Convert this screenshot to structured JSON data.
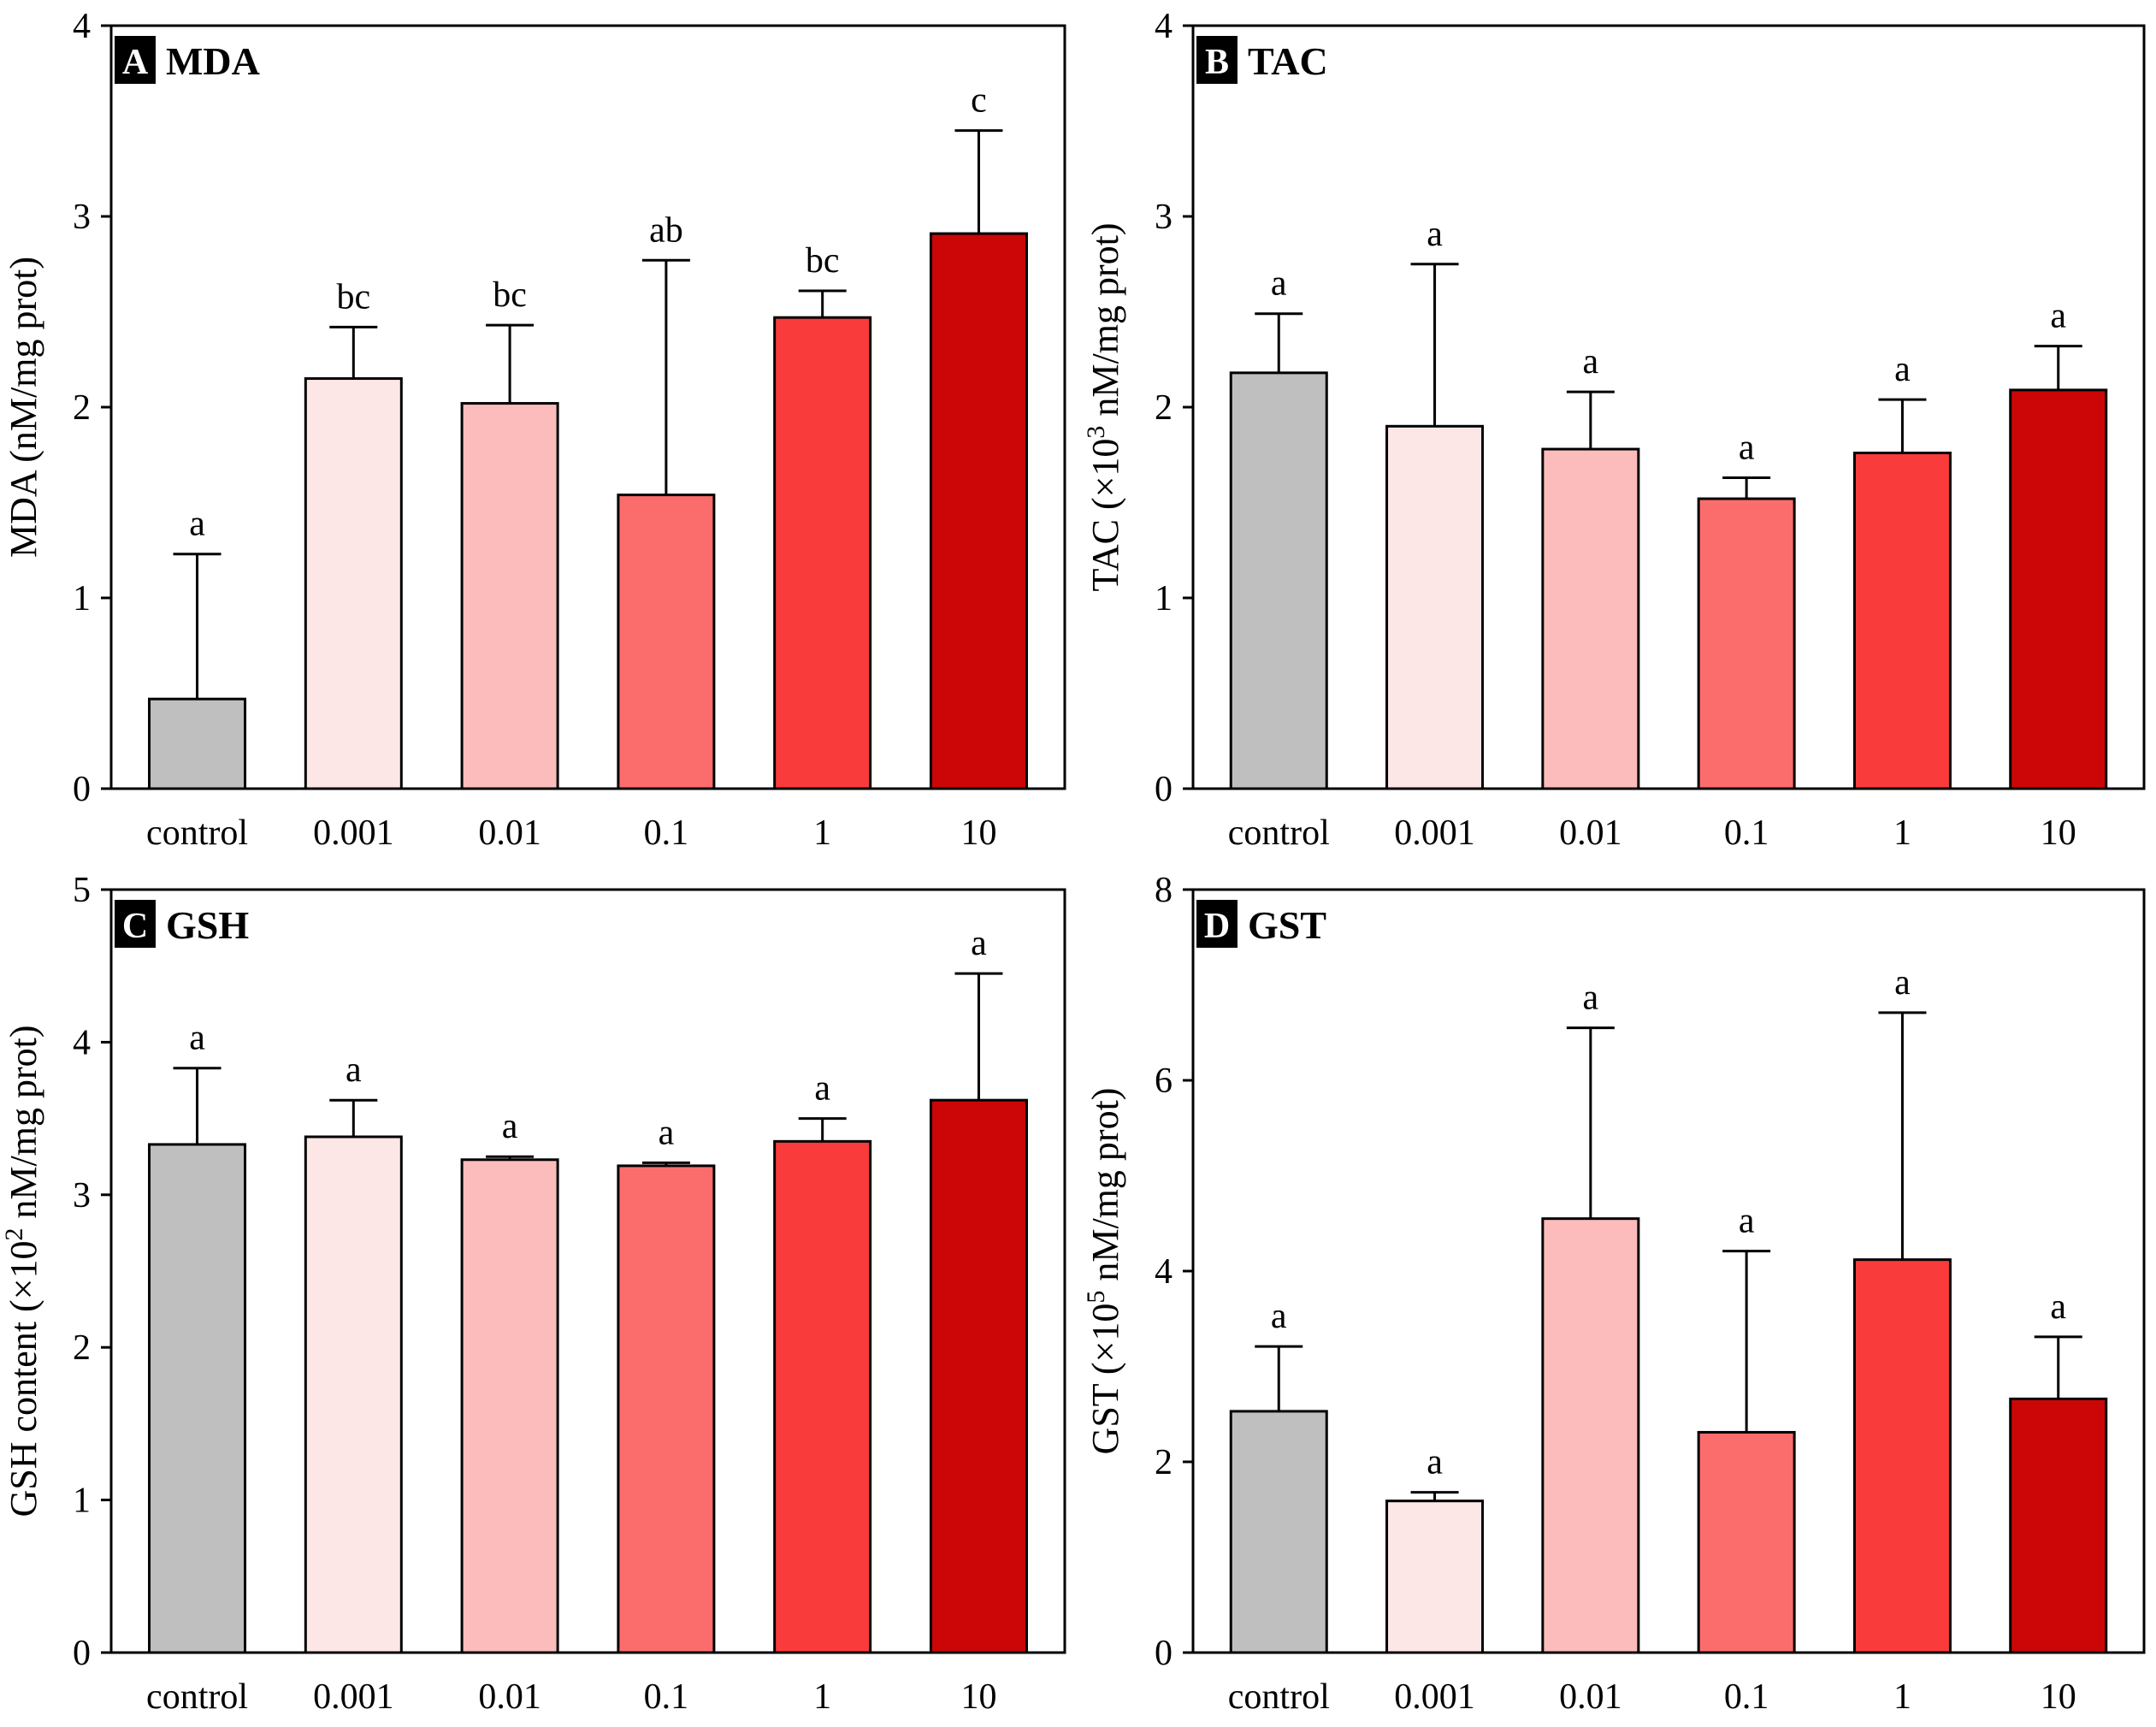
{
  "colors": [
    "#bfbfbf",
    "#fde6e6",
    "#fcbcbc",
    "#fb6d6d",
    "#fa3b3b",
    "#cc0606"
  ],
  "chart_data": [
    {
      "type": "bar",
      "panel_letter": "A",
      "title": "MDA",
      "ylabel": "MDA (nM/mg prot)",
      "ylabel_sup": "",
      "ylabel_after": "",
      "categories": [
        "control",
        "0.001",
        "0.01",
        "0.1",
        "1",
        "10"
      ],
      "values": [
        0.47,
        2.15,
        2.02,
        1.54,
        2.47,
        2.91
      ],
      "errors": [
        0.76,
        0.27,
        0.41,
        1.23,
        0.14,
        0.54
      ],
      "significance": [
        "a",
        "bc",
        "bc",
        "ab",
        "bc",
        "c"
      ],
      "ylim": [
        0,
        4
      ],
      "yticks": [
        0,
        1,
        2,
        3,
        4
      ]
    },
    {
      "type": "bar",
      "panel_letter": "B",
      "title": "TAC",
      "ylabel": "TAC (×10",
      "ylabel_sup": "3",
      "ylabel_after": " nM/mg prot)",
      "categories": [
        "control",
        "0.001",
        "0.01",
        "0.1",
        "1",
        "10"
      ],
      "values": [
        2.18,
        1.9,
        1.78,
        1.52,
        1.76,
        2.09
      ],
      "errors": [
        0.31,
        0.85,
        0.3,
        0.11,
        0.28,
        0.23
      ],
      "significance": [
        "a",
        "a",
        "a",
        "a",
        "a",
        "a"
      ],
      "ylim": [
        0,
        4
      ],
      "yticks": [
        0,
        1,
        2,
        3,
        4
      ]
    },
    {
      "type": "bar",
      "panel_letter": "C",
      "title": "GSH",
      "ylabel": "GSH content (×10",
      "ylabel_sup": "2",
      "ylabel_after": " nM/mg prot)",
      "categories": [
        "control",
        "0.001",
        "0.01",
        "0.1",
        "1",
        "10"
      ],
      "values": [
        3.33,
        3.38,
        3.23,
        3.19,
        3.35,
        3.62
      ],
      "errors": [
        0.5,
        0.24,
        0.02,
        0.02,
        0.15,
        0.83
      ],
      "significance": [
        "a",
        "a",
        "a",
        "a",
        "a",
        "a"
      ],
      "ylim": [
        0,
        5
      ],
      "yticks": [
        0,
        1,
        2,
        3,
        4,
        5
      ]
    },
    {
      "type": "bar",
      "panel_letter": "D",
      "title": "GST",
      "ylabel": "GST (×10",
      "ylabel_sup": "5",
      "ylabel_after": " nM/mg prot)",
      "categories": [
        "control",
        "0.001",
        "0.01",
        "0.1",
        "1",
        "10"
      ],
      "values": [
        2.53,
        1.59,
        4.55,
        2.31,
        4.12,
        2.66
      ],
      "errors": [
        0.68,
        0.09,
        2.0,
        1.9,
        2.59,
        0.65
      ],
      "significance": [
        "a",
        "a",
        "a",
        "a",
        "a",
        "a"
      ],
      "ylim": [
        0,
        8
      ],
      "yticks": [
        0,
        2,
        4,
        6,
        8
      ]
    }
  ]
}
